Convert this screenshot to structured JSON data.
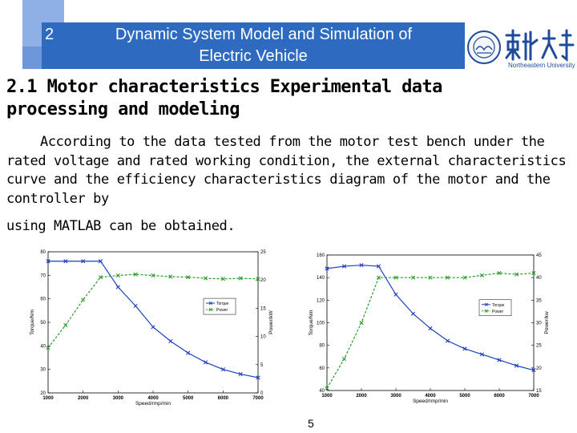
{
  "header": {
    "section_number": "2",
    "title_line1": "Dynamic System Model and Simulation of",
    "title_line2": "Electric Vehicle",
    "logo_text": "Northeastern University",
    "colors": {
      "bar": "#2e6bc0",
      "light": "#8fb0e6",
      "accent": "#6d96db"
    }
  },
  "section_title_line1": "2.1 Motor characteristics Experimental data",
  "section_title_line2": "processing and modeling",
  "paragraph": "According to the data tested from the motor test bench under the rated voltage and rated working condition, the external characteristics curve and the efficiency characteristics diagram of the motor and the controller by",
  "paragraph_tail": "using MATLAB can be obtained.",
  "page_number": "5",
  "chart_data": [
    {
      "type": "line",
      "xlabel": "Speed/rmp/min",
      "ylabel": "Torque/Nm",
      "y2label": "Power/kW",
      "xlim": [
        1000,
        7000
      ],
      "ylim": [
        20,
        80
      ],
      "y2lim": [
        0,
        25
      ],
      "xticks": [
        "1000",
        "2000",
        "3000",
        "4000",
        "5000",
        "6000",
        "7000"
      ],
      "yticks": [
        "20",
        "30",
        "40",
        "50",
        "60",
        "70",
        "80"
      ],
      "y2ticks": [
        "0",
        "5",
        "10",
        "15",
        "20",
        "25"
      ],
      "legend": [
        "Torque",
        "Power"
      ],
      "legend_position": "right",
      "series": [
        {
          "name": "Torque",
          "axis": "left",
          "color": "#1f3fbf",
          "style": "solid",
          "x": [
            1000,
            1500,
            2000,
            2500,
            3000,
            3500,
            4000,
            4500,
            5000,
            5500,
            6000,
            6500,
            7000
          ],
          "values": [
            76,
            76,
            76,
            76,
            65,
            57,
            48,
            42,
            37,
            33,
            30,
            28,
            26.5
          ]
        },
        {
          "name": "Power",
          "axis": "right",
          "color": "#2a9a2a",
          "style": "dashed",
          "x": [
            1000,
            1500,
            2000,
            2500,
            3000,
            3500,
            4000,
            4500,
            5000,
            5500,
            6000,
            6500,
            7000
          ],
          "values": [
            8,
            12,
            16.5,
            20.5,
            20.8,
            21,
            20.8,
            20.6,
            20.5,
            20.3,
            20.2,
            20.3,
            20.2
          ]
        }
      ]
    },
    {
      "type": "line",
      "xlabel": "Speed/rmp/min",
      "ylabel": "Torque/Nm",
      "y2label": "Power/kw",
      "xlim": [
        1000,
        7000
      ],
      "ylim": [
        40,
        160
      ],
      "y2lim": [
        15,
        45
      ],
      "xticks": [
        "1000",
        "2000",
        "3000",
        "4000",
        "5000",
        "6000",
        "7000"
      ],
      "yticks": [
        "40",
        "60",
        "80",
        "100",
        "120",
        "140",
        "160"
      ],
      "y2ticks": [
        "15",
        "20",
        "25",
        "30",
        "35",
        "40",
        "45"
      ],
      "legend": [
        "Torque",
        "Power"
      ],
      "legend_position": "right",
      "series": [
        {
          "name": "Torque",
          "axis": "left",
          "color": "#1f3fbf",
          "style": "solid",
          "x": [
            1000,
            1500,
            2000,
            2500,
            3000,
            3500,
            4000,
            4500,
            5000,
            5500,
            6000,
            6500,
            7000
          ],
          "values": [
            148,
            150,
            151,
            150,
            125,
            108,
            95,
            84,
            77,
            72,
            67,
            62,
            58
          ]
        },
        {
          "name": "Power",
          "axis": "right",
          "color": "#2a9a2a",
          "style": "dashed",
          "x": [
            1000,
            1500,
            2000,
            2500,
            3000,
            3500,
            4000,
            4500,
            5000,
            5500,
            6000,
            6500,
            7000
          ],
          "values": [
            15.5,
            22,
            30,
            40,
            40,
            40,
            40,
            40,
            40,
            40.5,
            41,
            40.7,
            41
          ]
        }
      ]
    }
  ]
}
